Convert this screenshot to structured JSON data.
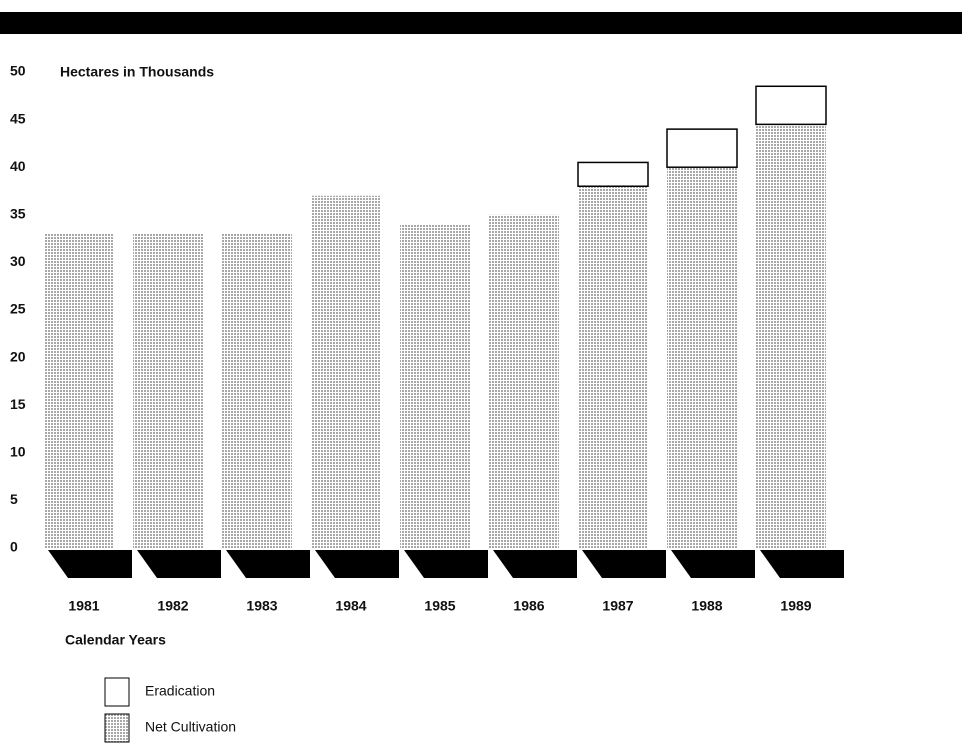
{
  "chart_data": {
    "type": "stacked_bar",
    "title": "Hectares in Thousands",
    "x_label": "Calendar Years",
    "categories": [
      "1981",
      "1982",
      "1983",
      "1984",
      "1985",
      "1986",
      "1987",
      "1988",
      "1989"
    ],
    "series": [
      {
        "name": "Net Cultivation",
        "color": "#a8a8a8",
        "values": [
          33,
          33,
          33,
          37,
          34,
          35,
          38,
          40,
          44.5
        ]
      },
      {
        "name": "Eradication",
        "color": "#ffffff",
        "values": [
          0,
          0,
          0,
          0,
          0,
          0,
          2.5,
          4,
          4
        ]
      }
    ],
    "ylim": [
      0,
      50
    ],
    "yticks": [
      0,
      5,
      10,
      15,
      20,
      25,
      30,
      35,
      40,
      45,
      50
    ]
  }
}
